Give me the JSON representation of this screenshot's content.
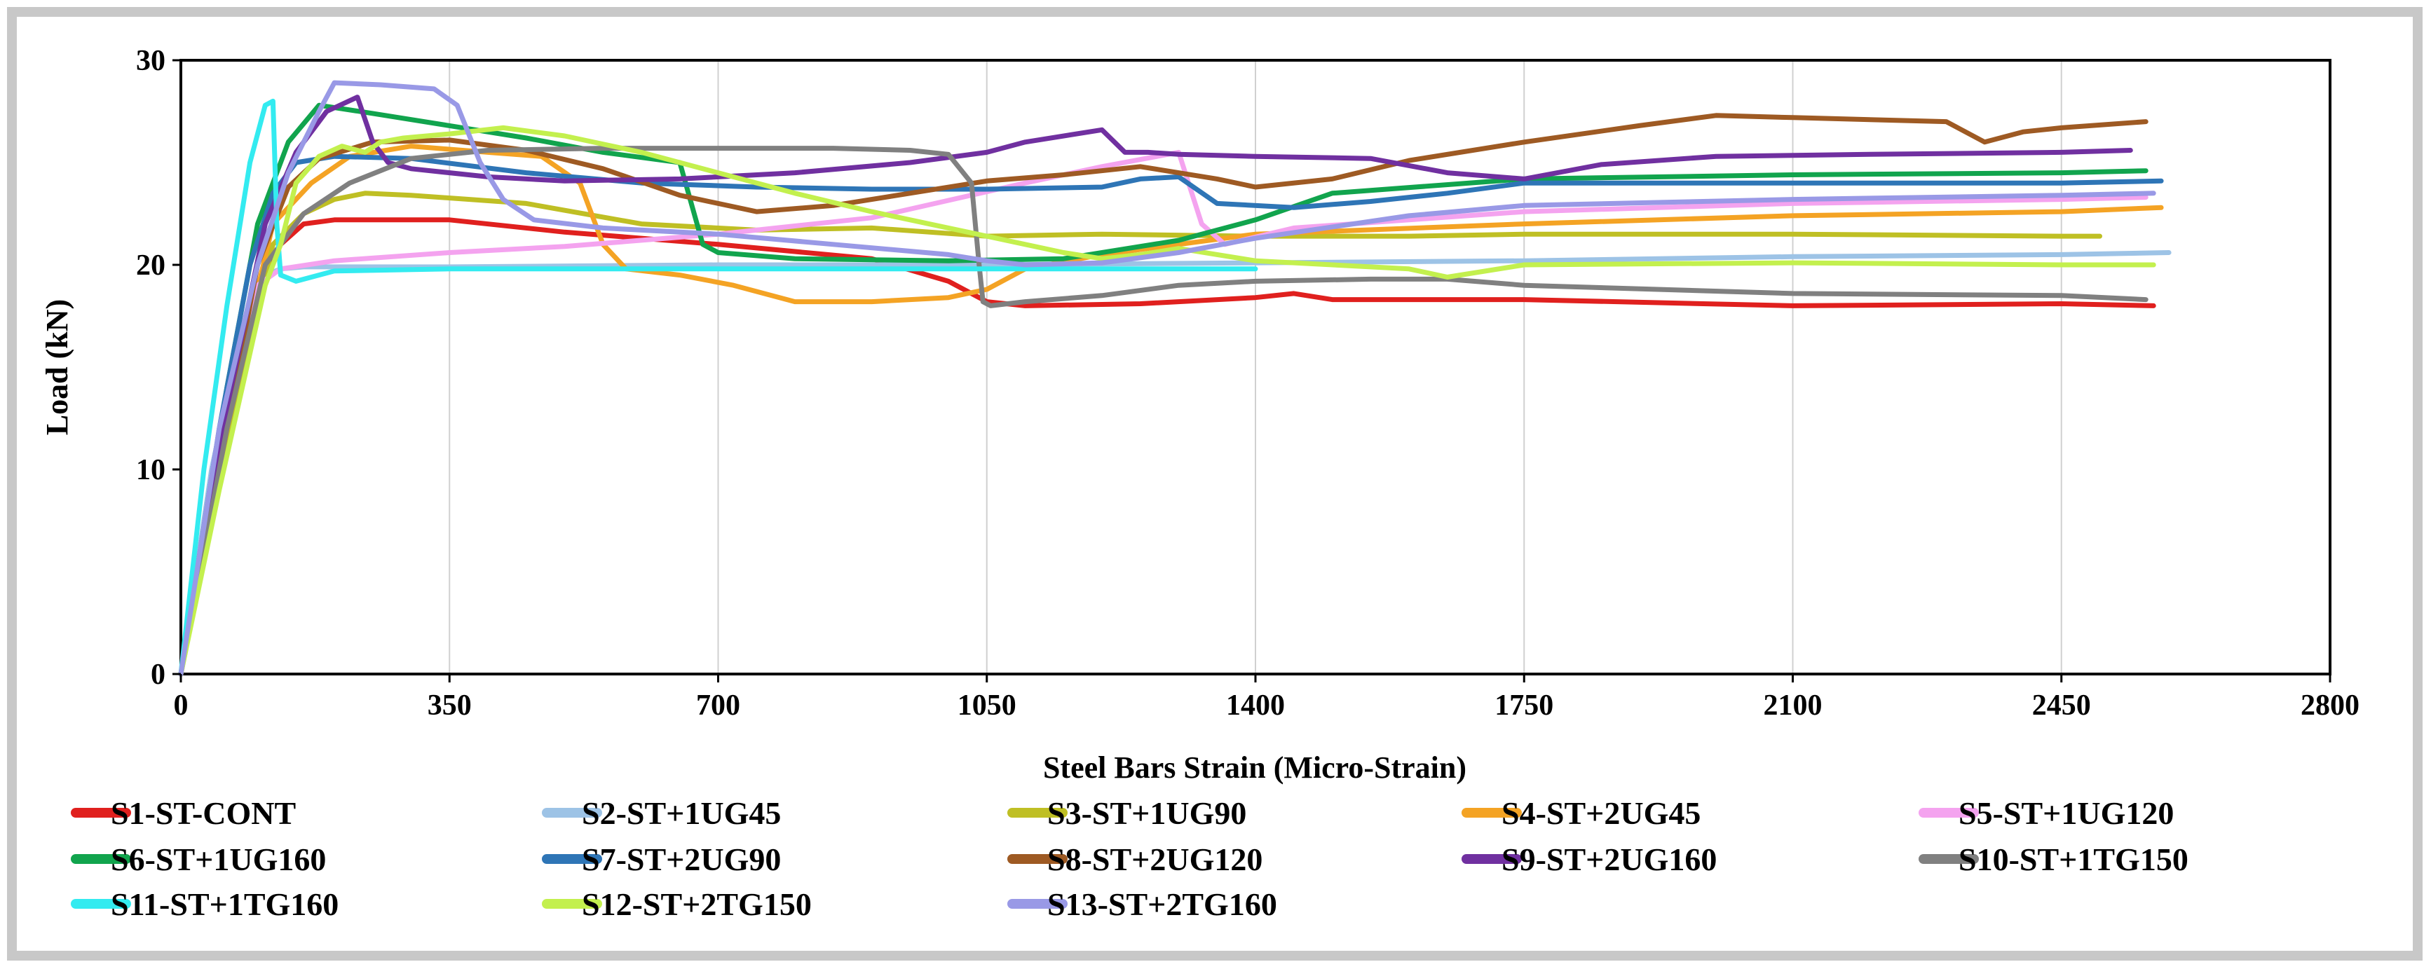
{
  "chart_data": {
    "type": "line",
    "title": "",
    "xlabel": "Steel Bars Strain (Micro-Strain)",
    "ylabel": "Load (kN)",
    "xlim": [
      0,
      2800
    ],
    "ylim": [
      0,
      30
    ],
    "xticks": [
      0,
      350,
      700,
      1050,
      1400,
      1750,
      2100,
      2450,
      2800
    ],
    "yticks": [
      0,
      10,
      20,
      30
    ],
    "grid": "vertical",
    "legend_position": "bottom",
    "series": [
      {
        "name": "S1-ST-CONT",
        "color": "#e0201e",
        "x": [
          0,
          60,
          100,
          130,
          160,
          200,
          350,
          500,
          700,
          900,
          1000,
          1050,
          1100,
          1250,
          1400,
          1450,
          1500,
          1750,
          2100,
          2450,
          2570
        ],
        "y": [
          0,
          12,
          18.5,
          21,
          22,
          22.2,
          22.2,
          21.6,
          21,
          20.3,
          19.2,
          18.2,
          18,
          18.1,
          18.4,
          18.6,
          18.3,
          18.3,
          18,
          18.1,
          18
        ]
      },
      {
        "name": "S2-ST+1UG45",
        "color": "#9dc3e6",
        "x": [
          0,
          40,
          80,
          110,
          130,
          160,
          350,
          700,
          1050,
          1400,
          1750,
          2100,
          2450,
          2590
        ],
        "y": [
          0,
          10,
          17,
          19.5,
          19.8,
          19.9,
          19.9,
          20,
          20,
          20.1,
          20.2,
          20.4,
          20.5,
          20.6
        ]
      },
      {
        "name": "S3-ST+1UG90",
        "color": "#bfbf24",
        "x": [
          0,
          70,
          120,
          160,
          200,
          240,
          300,
          450,
          600,
          750,
          900,
          1050,
          1200,
          1400,
          1600,
          1750,
          2100,
          2450,
          2500
        ],
        "y": [
          0,
          13,
          21,
          22.5,
          23.2,
          23.5,
          23.4,
          23,
          22,
          21.7,
          21.8,
          21.4,
          21.5,
          21.4,
          21.4,
          21.5,
          21.5,
          21.4,
          21.4
        ]
      },
      {
        "name": "S4-ST+2UG45",
        "color": "#f4a324",
        "x": [
          0,
          70,
          120,
          170,
          220,
          300,
          400,
          470,
          520,
          550,
          580,
          650,
          720,
          800,
          900,
          1000,
          1050,
          1100,
          1200,
          1400,
          1750,
          2100,
          2450,
          2580
        ],
        "y": [
          0,
          14,
          22,
          24,
          25.3,
          25.8,
          25.5,
          25.3,
          24,
          21,
          19.8,
          19.5,
          19,
          18.2,
          18.2,
          18.4,
          18.8,
          19.8,
          20.5,
          21.5,
          22,
          22.4,
          22.6,
          22.8
        ]
      },
      {
        "name": "S5-ST+1UG120",
        "color": "#f4a3ef",
        "x": [
          0,
          60,
          100,
          130,
          200,
          350,
          500,
          700,
          900,
          1100,
          1200,
          1300,
          1330,
          1360,
          1450,
          1750,
          2100,
          2450,
          2560
        ],
        "y": [
          0,
          12,
          19,
          19.8,
          20.2,
          20.6,
          20.9,
          21.5,
          22.3,
          24,
          24.8,
          25.5,
          22,
          21,
          21.8,
          22.6,
          23,
          23.2,
          23.3
        ]
      },
      {
        "name": "S6-ST+1UG160",
        "color": "#11a44d",
        "x": [
          0,
          60,
          100,
          140,
          180,
          250,
          350,
          450,
          550,
          650,
          680,
          700,
          800,
          1000,
          1150,
          1300,
          1400,
          1500,
          1750,
          2100,
          2450,
          2560
        ],
        "y": [
          0,
          14,
          22,
          26,
          27.8,
          27.4,
          26.8,
          26.2,
          25.5,
          25,
          21,
          20.6,
          20.3,
          20.2,
          20.3,
          21.2,
          22.2,
          23.5,
          24.2,
          24.4,
          24.5,
          24.6
        ]
      },
      {
        "name": "S7-ST+2UG90",
        "color": "#2e75b6",
        "x": [
          0,
          50,
          90,
          120,
          150,
          200,
          300,
          450,
          600,
          750,
          900,
          1050,
          1200,
          1250,
          1300,
          1350,
          1450,
          1550,
          1650,
          1750,
          2100,
          2450,
          2580
        ],
        "y": [
          0,
          12,
          20,
          23.5,
          25,
          25.3,
          25.2,
          24.5,
          24,
          23.8,
          23.7,
          23.7,
          23.8,
          24.2,
          24.3,
          23,
          22.8,
          23.1,
          23.5,
          24,
          24,
          24,
          24.1
        ]
      },
      {
        "name": "S8-ST+2UG120",
        "color": "#9e5a23",
        "x": [
          0,
          60,
          100,
          140,
          180,
          250,
          350,
          450,
          550,
          650,
          750,
          850,
          950,
          1050,
          1150,
          1250,
          1350,
          1400,
          1500,
          1600,
          1750,
          1900,
          2000,
          2100,
          2300,
          2350,
          2400,
          2450,
          2560
        ],
        "y": [
          0,
          12,
          20,
          23.8,
          25.2,
          26,
          26.1,
          25.6,
          24.7,
          23.4,
          22.6,
          22.9,
          23.5,
          24.1,
          24.4,
          24.8,
          24.2,
          23.8,
          24.2,
          25.1,
          26,
          26.8,
          27.3,
          27.2,
          27,
          26,
          26.5,
          26.7,
          27
        ]
      },
      {
        "name": "S9-ST+2UG160",
        "color": "#7030a0",
        "x": [
          0,
          60,
          110,
          150,
          190,
          230,
          250,
          270,
          300,
          400,
          500,
          650,
          800,
          950,
          1050,
          1100,
          1200,
          1230,
          1260,
          1300,
          1400,
          1550,
          1650,
          1750,
          1850,
          2000,
          2200,
          2450,
          2540
        ],
        "y": [
          0,
          13,
          22,
          25.5,
          27.5,
          28.2,
          26,
          25,
          24.7,
          24.3,
          24.1,
          24.2,
          24.5,
          25,
          25.5,
          26,
          26.6,
          25.5,
          25.5,
          25.4,
          25.3,
          25.2,
          24.5,
          24.2,
          24.9,
          25.3,
          25.4,
          25.5,
          25.6
        ]
      },
      {
        "name": "S10-ST+1TG150",
        "color": "#808080",
        "x": [
          0,
          60,
          110,
          160,
          220,
          300,
          400,
          550,
          700,
          850,
          950,
          1000,
          1030,
          1040,
          1045,
          1055,
          1100,
          1200,
          1300,
          1400,
          1550,
          1650,
          1750,
          2100,
          2450,
          2560
        ],
        "y": [
          0,
          12,
          20,
          22.5,
          24,
          25.2,
          25.6,
          25.7,
          25.7,
          25.7,
          25.6,
          25.4,
          24,
          20,
          18.2,
          18,
          18.2,
          18.5,
          19,
          19.2,
          19.3,
          19.3,
          19,
          18.6,
          18.5,
          18.3
        ]
      },
      {
        "name": "S11-ST+1TG160",
        "color": "#33ebf0",
        "x": [
          0,
          30,
          60,
          90,
          110,
          120,
          125,
          130,
          150,
          200,
          350,
          700,
          1050,
          1400
        ],
        "y": [
          0,
          10,
          18,
          25,
          27.8,
          28,
          22,
          19.5,
          19.2,
          19.7,
          19.8,
          19.8,
          19.8,
          19.8
        ]
      },
      {
        "name": "S12-ST+2TG150",
        "color": "#c3f04e",
        "x": [
          0,
          50,
          80,
          110,
          130,
          150,
          180,
          210,
          240,
          260,
          290,
          350,
          420,
          500,
          600,
          700,
          800,
          900,
          1000,
          1100,
          1150,
          1200,
          1250,
          1300,
          1400,
          1600,
          1650,
          1750,
          2100,
          2450,
          2570
        ],
        "y": [
          0,
          9,
          14,
          19,
          21,
          24,
          25.3,
          25.8,
          25.5,
          26,
          26.2,
          26.4,
          26.7,
          26.3,
          25.5,
          24.5,
          23.5,
          22.6,
          21.8,
          21,
          20.6,
          20.3,
          20.5,
          20.8,
          20.2,
          19.8,
          19.4,
          20,
          20.1,
          20,
          20
        ]
      },
      {
        "name": "S13-ST+2TG160",
        "color": "#9999e6",
        "x": [
          0,
          50,
          100,
          140,
          180,
          200,
          260,
          330,
          360,
          390,
          420,
          460,
          550,
          700,
          850,
          1000,
          1050,
          1100,
          1200,
          1300,
          1400,
          1600,
          1750,
          2100,
          2450,
          2570
        ],
        "y": [
          0,
          12,
          20,
          24.5,
          27.5,
          28.9,
          28.8,
          28.6,
          27.8,
          25,
          23.2,
          22.2,
          21.8,
          21.5,
          21,
          20.5,
          20.2,
          20,
          20.1,
          20.6,
          21.3,
          22.4,
          22.9,
          23.2,
          23.4,
          23.5
        ]
      }
    ]
  }
}
